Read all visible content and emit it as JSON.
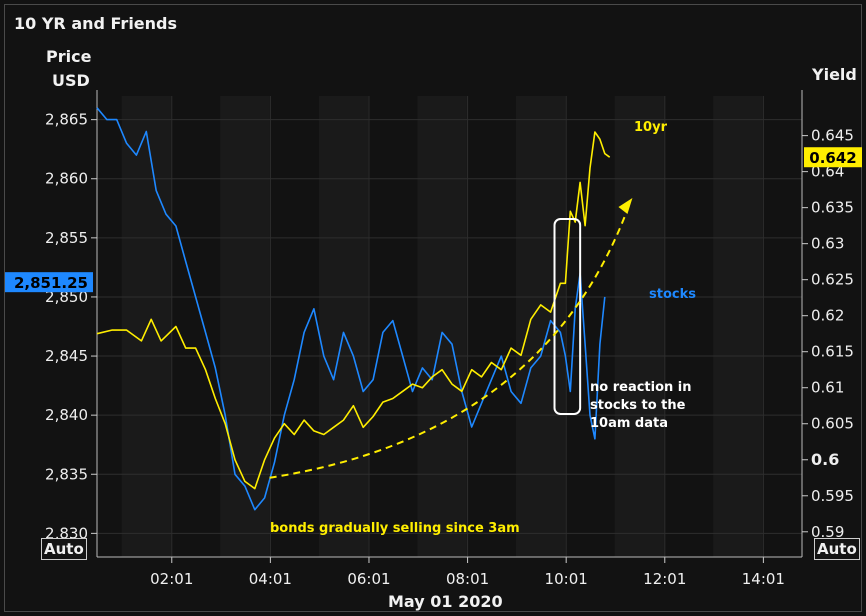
{
  "title": "10 YR and Friends",
  "left_axis_title_1": "Price",
  "left_axis_title_2": "USD",
  "right_axis_title": "Yield",
  "auto_left": "Auto",
  "auto_right": "Auto",
  "x_date_label": "May 01 2020",
  "colors": {
    "stocks": "#1e88ff",
    "tenyr": "#ffee00",
    "background": "#121212",
    "grid": "#2e2e2e",
    "annotation": "#ffee00"
  },
  "chart_data": {
    "type": "line",
    "title": "10 YR and Friends",
    "xlabel": "May 01 2020",
    "x_ticks": [
      "02:01",
      "04:01",
      "06:01",
      "08:01",
      "10:01",
      "12:01",
      "14:01"
    ],
    "x_range_hours": [
      0.5,
      14.8
    ],
    "y_left": {
      "label": "Price USD",
      "range": [
        2828,
        2867
      ],
      "ticks": [
        "2,830",
        "2,835",
        "2,840",
        "2,845",
        "2,850",
        "2,855",
        "2,860",
        "2,865"
      ],
      "last_value": "2,851.25"
    },
    "y_right": {
      "label": "Yield",
      "range": [
        0.5865,
        0.6505
      ],
      "ticks": [
        "0.59",
        "0.595",
        "0.6",
        "0.605",
        "0.61",
        "0.615",
        "0.62",
        "0.625",
        "0.63",
        "0.635",
        "0.64",
        "0.645"
      ],
      "bold_tick": "0.6",
      "last_value": "0.642"
    },
    "series": [
      {
        "name": "stocks",
        "axis": "left",
        "color": "#1e88ff",
        "x": [
          0.5,
          0.7,
          0.9,
          1.1,
          1.3,
          1.5,
          1.7,
          1.9,
          2.1,
          2.3,
          2.5,
          2.7,
          2.9,
          3.1,
          3.3,
          3.5,
          3.7,
          3.9,
          4.1,
          4.3,
          4.5,
          4.7,
          4.9,
          5.1,
          5.3,
          5.5,
          5.7,
          5.9,
          6.1,
          6.3,
          6.5,
          6.7,
          6.9,
          7.1,
          7.3,
          7.5,
          7.7,
          7.9,
          8.1,
          8.3,
          8.5,
          8.7,
          8.9,
          9.1,
          9.3,
          9.5,
          9.7,
          9.9,
          10.0,
          10.1,
          10.2,
          10.3,
          10.4,
          10.5,
          10.6,
          10.7,
          10.8
        ],
        "y": [
          2866,
          2865,
          2865,
          2863,
          2862,
          2864,
          2859,
          2857,
          2856,
          2853,
          2850,
          2847,
          2844,
          2840,
          2835,
          2834,
          2832,
          2833,
          2836,
          2840,
          2843,
          2847,
          2849,
          2845,
          2843,
          2847,
          2845,
          2842,
          2843,
          2847,
          2848,
          2845,
          2842,
          2844,
          2843,
          2847,
          2846,
          2842,
          2839,
          2841,
          2843,
          2845,
          2842,
          2841,
          2844,
          2845,
          2848,
          2847,
          2845,
          2842,
          2849,
          2852,
          2846,
          2840,
          2838,
          2846,
          2850
        ]
      },
      {
        "name": "10yr",
        "axis": "right",
        "color": "#ffee00",
        "x": [
          0.5,
          0.8,
          1.1,
          1.4,
          1.6,
          1.8,
          2.1,
          2.3,
          2.5,
          2.7,
          2.9,
          3.1,
          3.3,
          3.5,
          3.7,
          3.9,
          4.1,
          4.3,
          4.5,
          4.7,
          4.9,
          5.1,
          5.3,
          5.5,
          5.7,
          5.9,
          6.1,
          6.3,
          6.5,
          6.7,
          6.9,
          7.1,
          7.3,
          7.5,
          7.7,
          7.9,
          8.1,
          8.3,
          8.5,
          8.7,
          8.9,
          9.1,
          9.3,
          9.5,
          9.7,
          9.9,
          10.0,
          10.1,
          10.2,
          10.3,
          10.4,
          10.5,
          10.6,
          10.7,
          10.8,
          10.9
        ],
        "y": [
          0.6175,
          0.618,
          0.618,
          0.6165,
          0.6195,
          0.6165,
          0.6185,
          0.6155,
          0.6155,
          0.6125,
          0.6085,
          0.605,
          0.6,
          0.597,
          0.596,
          0.6,
          0.603,
          0.605,
          0.6035,
          0.6055,
          0.604,
          0.6035,
          0.6045,
          0.6055,
          0.6075,
          0.6045,
          0.606,
          0.608,
          0.6085,
          0.6095,
          0.6105,
          0.61,
          0.6115,
          0.6125,
          0.6105,
          0.6095,
          0.6125,
          0.6115,
          0.6135,
          0.6125,
          0.6155,
          0.6145,
          0.6195,
          0.6215,
          0.6205,
          0.6245,
          0.6245,
          0.6345,
          0.633,
          0.6385,
          0.6325,
          0.6405,
          0.6455,
          0.6445,
          0.6425,
          0.642
        ]
      }
    ],
    "annotations": [
      {
        "text": "10yr",
        "color": "#ffee00"
      },
      {
        "text": "stocks",
        "color": "#1e88ff"
      },
      {
        "lines": [
          "no reaction in",
          "stocks to the",
          "10am data"
        ],
        "color": "#ffffff"
      },
      {
        "text": "bonds gradually selling since 3am",
        "color": "#ffee00"
      }
    ]
  }
}
